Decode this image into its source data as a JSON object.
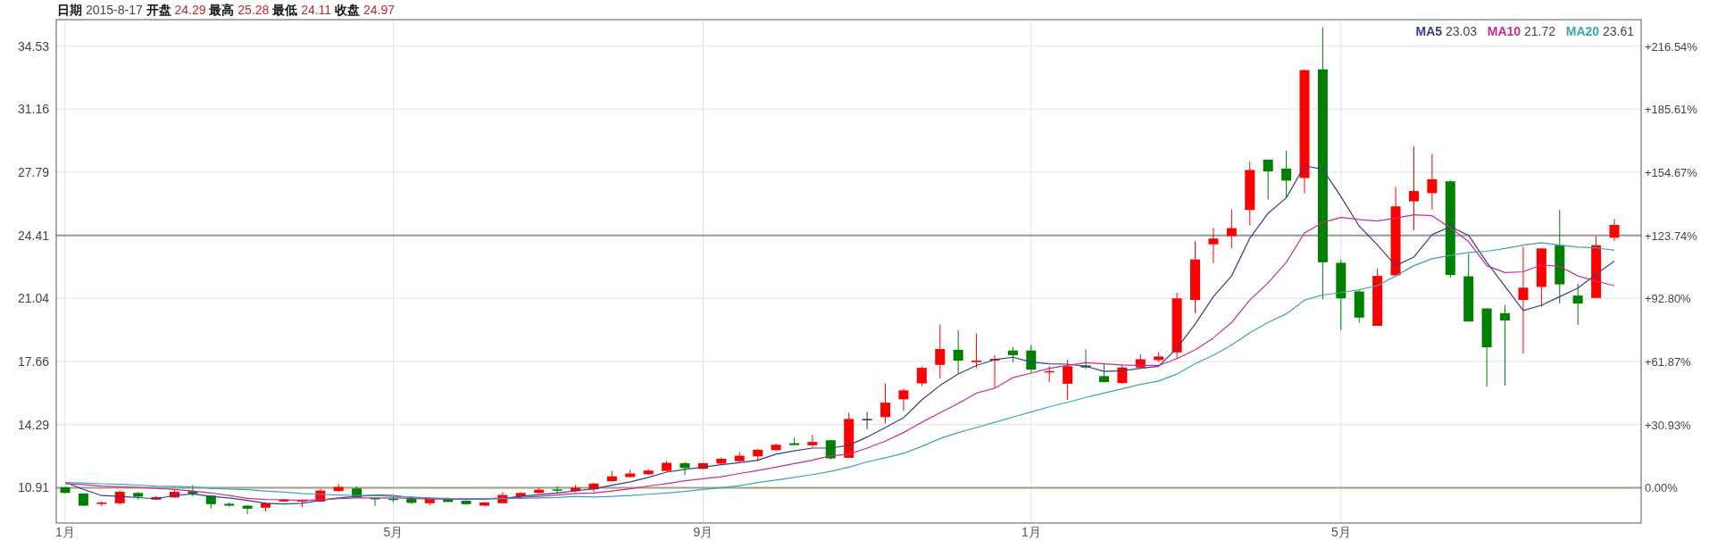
{
  "chart_data": {
    "type": "candlestick",
    "title": "**日期** 2015-8-17 **开盘** 24.29 **最高** 25.28 **最低** 24.11 **收盘** 24.97",
    "categories": [
      "1月",
      null,
      null,
      null,
      null,
      null,
      null,
      null,
      null,
      null,
      null,
      null,
      null,
      null,
      null,
      null,
      null,
      null,
      "5月",
      null,
      null,
      null,
      null,
      null,
      null,
      null,
      null,
      null,
      null,
      null,
      null,
      null,
      null,
      null,
      null,
      "9月",
      null,
      null,
      null,
      null,
      null,
      null,
      null,
      null,
      null,
      null,
      null,
      null,
      null,
      null,
      null,
      null,
      null,
      "1月",
      null,
      null,
      null,
      null,
      null,
      null,
      null,
      null,
      null,
      null,
      null,
      null,
      null,
      null,
      null,
      null,
      "5月",
      null,
      null,
      null,
      null,
      null,
      null,
      null,
      null,
      null,
      null,
      null,
      null,
      null,
      null,
      null
    ],
    "ohlc": [
      [
        10.93,
        10.95,
        10.62,
        10.63
      ],
      [
        10.6,
        10.6,
        9.93,
        9.95
      ],
      [
        10.04,
        10.17,
        9.93,
        10.12
      ],
      [
        10.08,
        10.76,
        10.01,
        10.69
      ],
      [
        10.63,
        10.69,
        10.27,
        10.43
      ],
      [
        10.27,
        10.45,
        10.25,
        10.41
      ],
      [
        10.39,
        10.82,
        10.36,
        10.69
      ],
      [
        10.73,
        11.06,
        10.45,
        10.6
      ],
      [
        10.49,
        10.52,
        9.79,
        10.03
      ],
      [
        10.05,
        10.12,
        9.9,
        9.95
      ],
      [
        9.95,
        9.99,
        9.49,
        9.79
      ],
      [
        9.84,
        10.14,
        9.64,
        10.08
      ],
      [
        10.17,
        10.3,
        10.14,
        10.27
      ],
      [
        10.17,
        10.29,
        9.86,
        10.27
      ],
      [
        10.17,
        10.85,
        10.14,
        10.76
      ],
      [
        10.73,
        11.11,
        10.71,
        10.95
      ],
      [
        10.87,
        10.98,
        10.36,
        10.39
      ],
      [
        10.36,
        10.38,
        9.93,
        10.3
      ],
      [
        10.32,
        10.45,
        10.12,
        10.27
      ],
      [
        10.36,
        10.45,
        10.04,
        10.1
      ],
      [
        10.08,
        10.39,
        9.97,
        10.36
      ],
      [
        10.34,
        10.38,
        10.14,
        10.15
      ],
      [
        10.21,
        10.25,
        9.99,
        10.03
      ],
      [
        9.95,
        10.14,
        9.93,
        10.12
      ],
      [
        10.08,
        10.67,
        10.08,
        10.52
      ],
      [
        10.45,
        10.67,
        10.41,
        10.63
      ],
      [
        10.63,
        10.91,
        10.62,
        10.8
      ],
      [
        10.82,
        10.98,
        10.63,
        10.76
      ],
      [
        10.73,
        11.06,
        10.67,
        10.91
      ],
      [
        10.82,
        11.17,
        10.67,
        11.13
      ],
      [
        11.26,
        11.81,
        11.22,
        11.52
      ],
      [
        11.48,
        11.87,
        11.46,
        11.67
      ],
      [
        11.63,
        11.92,
        11.59,
        11.83
      ],
      [
        11.81,
        12.33,
        11.78,
        12.24
      ],
      [
        12.22,
        12.29,
        11.59,
        11.96
      ],
      [
        11.92,
        12.25,
        11.89,
        12.22
      ],
      [
        12.2,
        12.53,
        12.14,
        12.46
      ],
      [
        12.33,
        12.81,
        12.24,
        12.62
      ],
      [
        12.59,
        12.97,
        12.33,
        12.94
      ],
      [
        12.92,
        13.27,
        12.9,
        13.21
      ],
      [
        13.29,
        13.58,
        13.18,
        13.19
      ],
      [
        13.18,
        13.73,
        13.08,
        13.36
      ],
      [
        13.45,
        13.47,
        12.42,
        12.48
      ],
      [
        12.51,
        14.91,
        12.51,
        14.59
      ],
      [
        14.59,
        14.96,
        14.04,
        14.59
      ],
      [
        14.69,
        16.49,
        14.35,
        15.46
      ],
      [
        15.64,
        16.2,
        15.02,
        16.12
      ],
      [
        16.49,
        17.39,
        16.34,
        17.32
      ],
      [
        17.48,
        19.64,
        16.75,
        18.33
      ],
      [
        18.29,
        19.33,
        17.02,
        17.71
      ],
      [
        17.63,
        19.16,
        17.3,
        17.71
      ],
      [
        17.71,
        18.0,
        16.23,
        17.8
      ],
      [
        18.25,
        18.44,
        17.63,
        18.0
      ],
      [
        18.25,
        18.55,
        17.08,
        17.23
      ],
      [
        17.08,
        17.41,
        16.56,
        17.15
      ],
      [
        16.47,
        17.76,
        15.61,
        17.41
      ],
      [
        17.45,
        18.31,
        17.26,
        17.34
      ],
      [
        16.88,
        17.58,
        16.53,
        16.56
      ],
      [
        16.51,
        17.5,
        16.45,
        17.34
      ],
      [
        17.34,
        18.04,
        17.32,
        17.78
      ],
      [
        17.74,
        18.15,
        17.63,
        17.93
      ],
      [
        18.15,
        21.35,
        17.82,
        21.04
      ],
      [
        20.95,
        24.1,
        20.25,
        23.12
      ],
      [
        23.93,
        24.81,
        22.92,
        24.24
      ],
      [
        24.37,
        25.79,
        23.71,
        24.8
      ],
      [
        25.77,
        28.37,
        24.94,
        27.91
      ],
      [
        28.46,
        28.46,
        26.32,
        27.83
      ],
      [
        27.98,
        28.94,
        26.43,
        27.34
      ],
      [
        27.48,
        33.29,
        26.66,
        33.25
      ],
      [
        33.29,
        35.53,
        20.98,
        22.97
      ],
      [
        22.94,
        23.12,
        19.33,
        21.04
      ],
      [
        21.41,
        21.5,
        19.73,
        20.01
      ],
      [
        19.57,
        22.64,
        19.57,
        22.24
      ],
      [
        22.27,
        26.97,
        22.27,
        25.96
      ],
      [
        26.23,
        29.18,
        24.67,
        26.78
      ],
      [
        26.67,
        28.76,
        25.79,
        27.41
      ],
      [
        27.3,
        27.36,
        22.14,
        22.29
      ],
      [
        22.22,
        23.43,
        19.8,
        19.8
      ],
      [
        20.5,
        20.5,
        16.31,
        18.42
      ],
      [
        20.25,
        20.69,
        16.38,
        19.86
      ],
      [
        20.95,
        23.8,
        18.09,
        21.61
      ],
      [
        21.65,
        23.71,
        20.58,
        23.71
      ],
      [
        23.89,
        25.77,
        20.76,
        21.79
      ],
      [
        21.19,
        21.83,
        19.62,
        20.76
      ],
      [
        21.06,
        24.37,
        21.06,
        23.88
      ],
      [
        24.29,
        25.28,
        24.11,
        24.97
      ]
    ],
    "colors": [
      "#008000",
      "#008000",
      "#ff0000",
      "#ff0000",
      "#008000",
      "#ff0000",
      "#ff0000",
      "#008000",
      "#008000",
      "#008000",
      "#008000",
      "#ff0000",
      "#ff0000",
      "#ff0000",
      "#ff0000",
      "#ff0000",
      "#008000",
      "#008000",
      "#008000",
      "#008000",
      "#ff0000",
      "#008000",
      "#008000",
      "#ff0000",
      "#ff0000",
      "#ff0000",
      "#ff0000",
      "#008000",
      "#ff0000",
      "#ff0000",
      "#ff0000",
      "#ff0000",
      "#ff0000",
      "#ff0000",
      "#008000",
      "#ff0000",
      "#ff0000",
      "#ff0000",
      "#ff0000",
      "#ff0000",
      "#008000",
      "#ff0000",
      "#008000",
      "#ff0000",
      "#333333",
      "#ff0000",
      "#ff0000",
      "#ff0000",
      "#ff0000",
      "#008000",
      "#ff0000",
      "#ff0000",
      "#008000",
      "#008000",
      "#ff0000",
      "#ff0000",
      "#008000",
      "#008000",
      "#ff0000",
      "#ff0000",
      "#ff0000",
      "#ff0000",
      "#ff0000",
      "#ff0000",
      "#ff0000",
      "#ff0000",
      "#008000",
      "#008000",
      "#ff0000",
      "#008000",
      "#008000",
      "#008000",
      "#ff0000",
      "#ff0000",
      "#ff0000",
      "#ff0000",
      "#008000",
      "#008000",
      "#008000",
      "#008000",
      "#ff0000",
      "#ff0000",
      "#008000",
      "#008000",
      "#ff0000",
      "#ff0000"
    ],
    "series": [
      {
        "name": "MA5",
        "type": "line",
        "color": "#333f8c",
        "values": [
          11.19,
          10.82,
          10.49,
          10.45,
          10.38,
          10.32,
          10.5,
          10.58,
          10.45,
          10.36,
          10.23,
          10.08,
          10.04,
          10.08,
          10.23,
          10.36,
          10.45,
          10.52,
          10.5,
          10.38,
          10.34,
          10.32,
          10.3,
          10.3,
          10.34,
          10.45,
          10.54,
          10.63,
          10.74,
          10.85,
          11.04,
          11.22,
          11.46,
          11.74,
          11.89,
          12.01,
          12.14,
          12.25,
          12.38,
          12.7,
          12.88,
          13.03,
          13.03,
          13.18,
          13.62,
          14.13,
          14.65,
          15.61,
          16.38,
          16.99,
          17.45,
          17.76,
          17.89,
          17.63,
          17.54,
          17.52,
          17.41,
          17.13,
          17.17,
          17.3,
          17.41,
          18.37,
          19.66,
          21.13,
          22.24,
          24.26,
          25.59,
          26.42,
          28.13,
          27.95,
          26.48,
          24.91,
          23.9,
          22.79,
          23.25,
          24.45,
          24.87,
          24.41,
          22.97,
          21.68,
          20.39,
          20.67,
          21.13,
          21.59,
          22.33,
          23.03
        ]
      },
      {
        "name": "MA10",
        "type": "line",
        "color": "#c72c94",
        "values": [
          11.13,
          11.08,
          11.0,
          10.96,
          10.93,
          10.87,
          10.82,
          10.73,
          10.63,
          10.49,
          10.34,
          10.28,
          10.27,
          10.23,
          10.27,
          10.32,
          10.36,
          10.36,
          10.36,
          10.34,
          10.3,
          10.3,
          10.3,
          10.32,
          10.36,
          10.39,
          10.45,
          10.52,
          10.6,
          10.63,
          10.73,
          10.85,
          11.0,
          11.13,
          11.28,
          11.39,
          11.5,
          11.67,
          11.83,
          12.01,
          12.2,
          12.38,
          12.62,
          12.7,
          13.03,
          13.4,
          13.86,
          14.41,
          14.92,
          15.42,
          15.97,
          16.23,
          16.8,
          17.04,
          17.3,
          17.45,
          17.6,
          17.54,
          17.48,
          17.45,
          17.45,
          17.82,
          18.28,
          18.92,
          19.75,
          20.95,
          21.87,
          22.97,
          24.54,
          25.09,
          25.37,
          25.26,
          25.18,
          25.33,
          25.51,
          25.46,
          24.81,
          24.08,
          22.79,
          22.42,
          22.46,
          22.83,
          22.75,
          22.24,
          21.96,
          21.72
        ]
      },
      {
        "name": "MA20",
        "type": "line",
        "color": "#3aa6b5",
        "values": [
          11.19,
          11.16,
          11.12,
          11.09,
          11.05,
          11.0,
          10.98,
          10.95,
          10.88,
          10.84,
          10.8,
          10.73,
          10.67,
          10.6,
          10.56,
          10.52,
          10.5,
          10.49,
          10.45,
          10.41,
          10.36,
          10.34,
          10.32,
          10.32,
          10.32,
          10.34,
          10.36,
          10.39,
          10.45,
          10.41,
          10.45,
          10.49,
          10.56,
          10.63,
          10.71,
          10.82,
          10.91,
          11.02,
          11.19,
          11.32,
          11.46,
          11.61,
          11.78,
          12.01,
          12.29,
          12.51,
          12.75,
          13.12,
          13.54,
          13.86,
          14.13,
          14.41,
          14.69,
          14.96,
          15.24,
          15.48,
          15.74,
          15.97,
          16.2,
          16.44,
          16.62,
          16.99,
          17.54,
          18.0,
          18.55,
          19.2,
          19.75,
          20.21,
          20.95,
          21.22,
          21.35,
          21.5,
          21.72,
          22.24,
          22.79,
          23.16,
          23.34,
          23.49,
          23.56,
          23.71,
          23.89,
          24.02,
          23.89,
          23.78,
          23.74,
          23.61
        ]
      }
    ],
    "ylim": [
      9.02,
      35.95
    ],
    "yticks": [
      10.91,
      14.29,
      17.66,
      21.04,
      24.41,
      27.79,
      31.16,
      34.53
    ],
    "y2lim": [
      -17.32,
      229.51
    ],
    "y2ticks": [
      {
        "value": 0,
        "label": "0.00%"
      },
      {
        "value": 30.93,
        "label": "+30.93%"
      },
      {
        "value": 61.87,
        "label": "+61.87%"
      },
      {
        "value": 92.8,
        "label": "+92.80%"
      },
      {
        "value": 123.74,
        "label": "+123.74%"
      },
      {
        "value": 154.67,
        "label": "+154.67%"
      },
      {
        "value": 185.61,
        "label": "+185.61%"
      },
      {
        "value": 216.54,
        "label": "+216.54%"
      }
    ],
    "ref_lines": [
      {
        "axis": "y",
        "value": 24.41,
        "color": "#999999"
      },
      {
        "axis": "y",
        "value": 10.91,
        "color": "#a0a080"
      }
    ],
    "annotations": [
      "23.03",
      "21.72",
      "23.61"
    ],
    "grid": true,
    "legend": "top right"
  }
}
